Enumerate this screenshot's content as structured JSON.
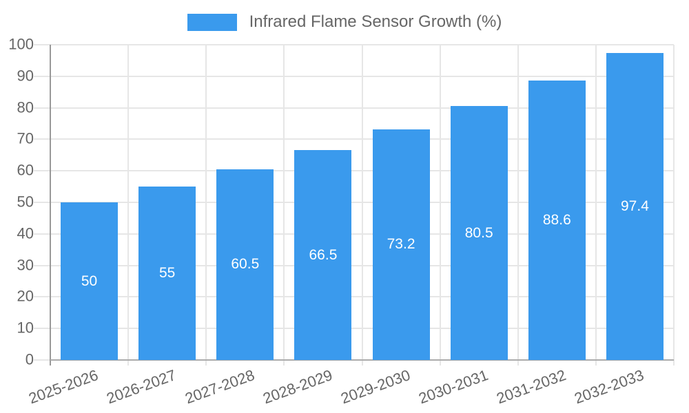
{
  "chart_data": {
    "type": "bar",
    "title": "Infrared Flame Sensor Growth (%)",
    "legend": {
      "position": "top",
      "entries": [
        {
          "label": "Infrared Flame Sensor Growth (%)",
          "swatch_color": "#3a9aed"
        }
      ]
    },
    "categories": [
      "2025-2026",
      "2026-2027",
      "2027-2028",
      "2028-2029",
      "2029-2030",
      "2030-2031",
      "2031-2032",
      "2032-2033"
    ],
    "values": [
      50,
      55,
      60.5,
      66.5,
      73.2,
      80.5,
      88.6,
      97.4
    ],
    "value_labels": [
      "50",
      "55",
      "60.5",
      "66.5",
      "73.2",
      "80.5",
      "88.6",
      "97.4"
    ],
    "value_label_position": "center-of-bar",
    "xlabel": "",
    "ylabel": "",
    "ylim": [
      0,
      100
    ],
    "yticks": [
      0,
      10,
      20,
      30,
      40,
      50,
      60,
      70,
      80,
      90,
      100
    ],
    "x_label_rotation_deg": -20,
    "grid": true,
    "colors": {
      "bar": "#3a9aed",
      "grid_line": "#e6e6e6",
      "y_axis_line": "#999999",
      "x_axis_line": "#ababab",
      "tick_text": "#666666",
      "legend_text": "#666666",
      "value_label_text": "#ffffff",
      "background": "#ffffff"
    }
  }
}
